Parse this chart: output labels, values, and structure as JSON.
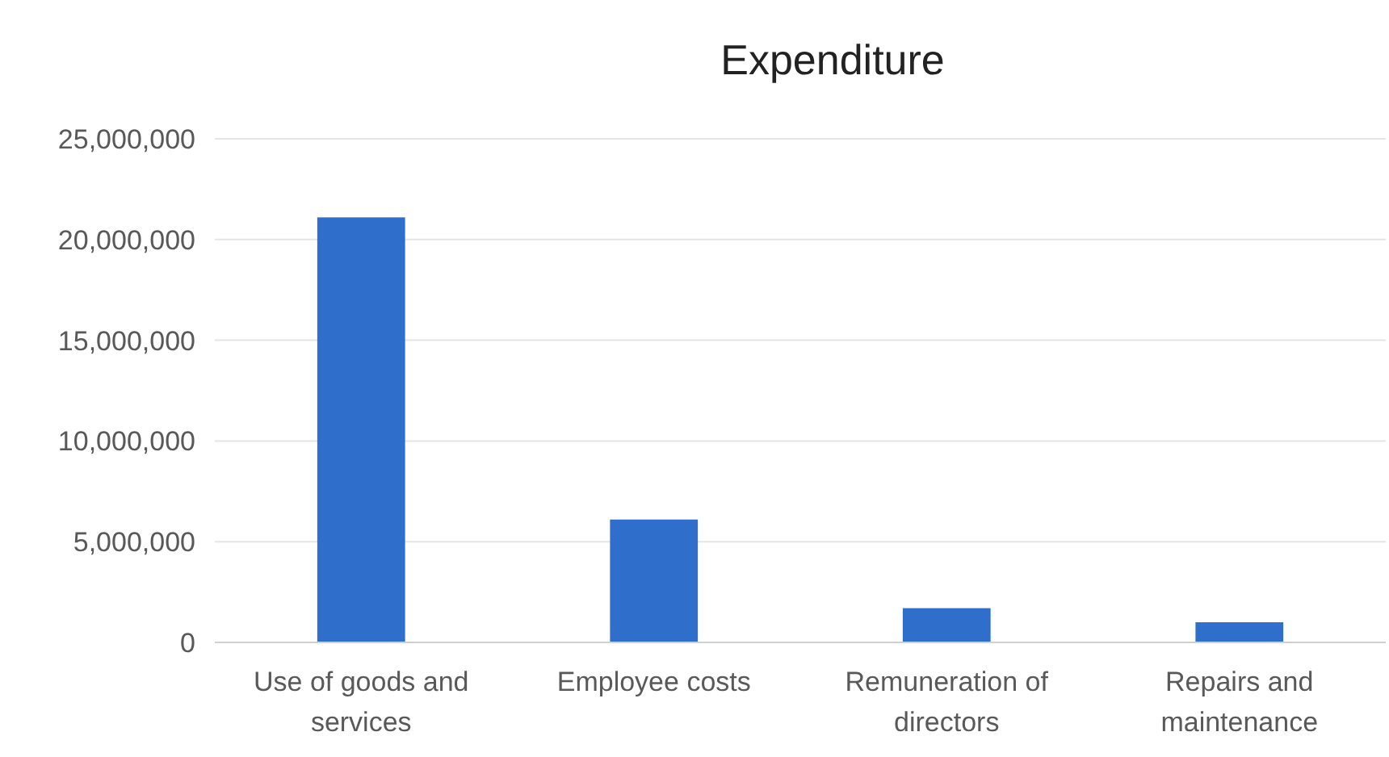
{
  "chart_data": {
    "type": "bar",
    "title": "Expenditure",
    "categories": [
      "Use of goods and services",
      "Employee costs",
      "Remuneration of directors",
      "Repairs and maintenance"
    ],
    "values": [
      21100000,
      6100000,
      1700000,
      1000000
    ],
    "color": "#2f6ecb",
    "ylim": [
      0,
      25000000
    ],
    "yticks": [
      {
        "value": 0,
        "label": "0"
      },
      {
        "value": 5000000,
        "label": "5,000,000"
      },
      {
        "value": 10000000,
        "label": "10,000,000"
      },
      {
        "value": 15000000,
        "label": "15,000,000"
      },
      {
        "value": 20000000,
        "label": "20,000,000"
      },
      {
        "value": 25000000,
        "label": "25,000,000"
      }
    ],
    "grid": "y"
  }
}
